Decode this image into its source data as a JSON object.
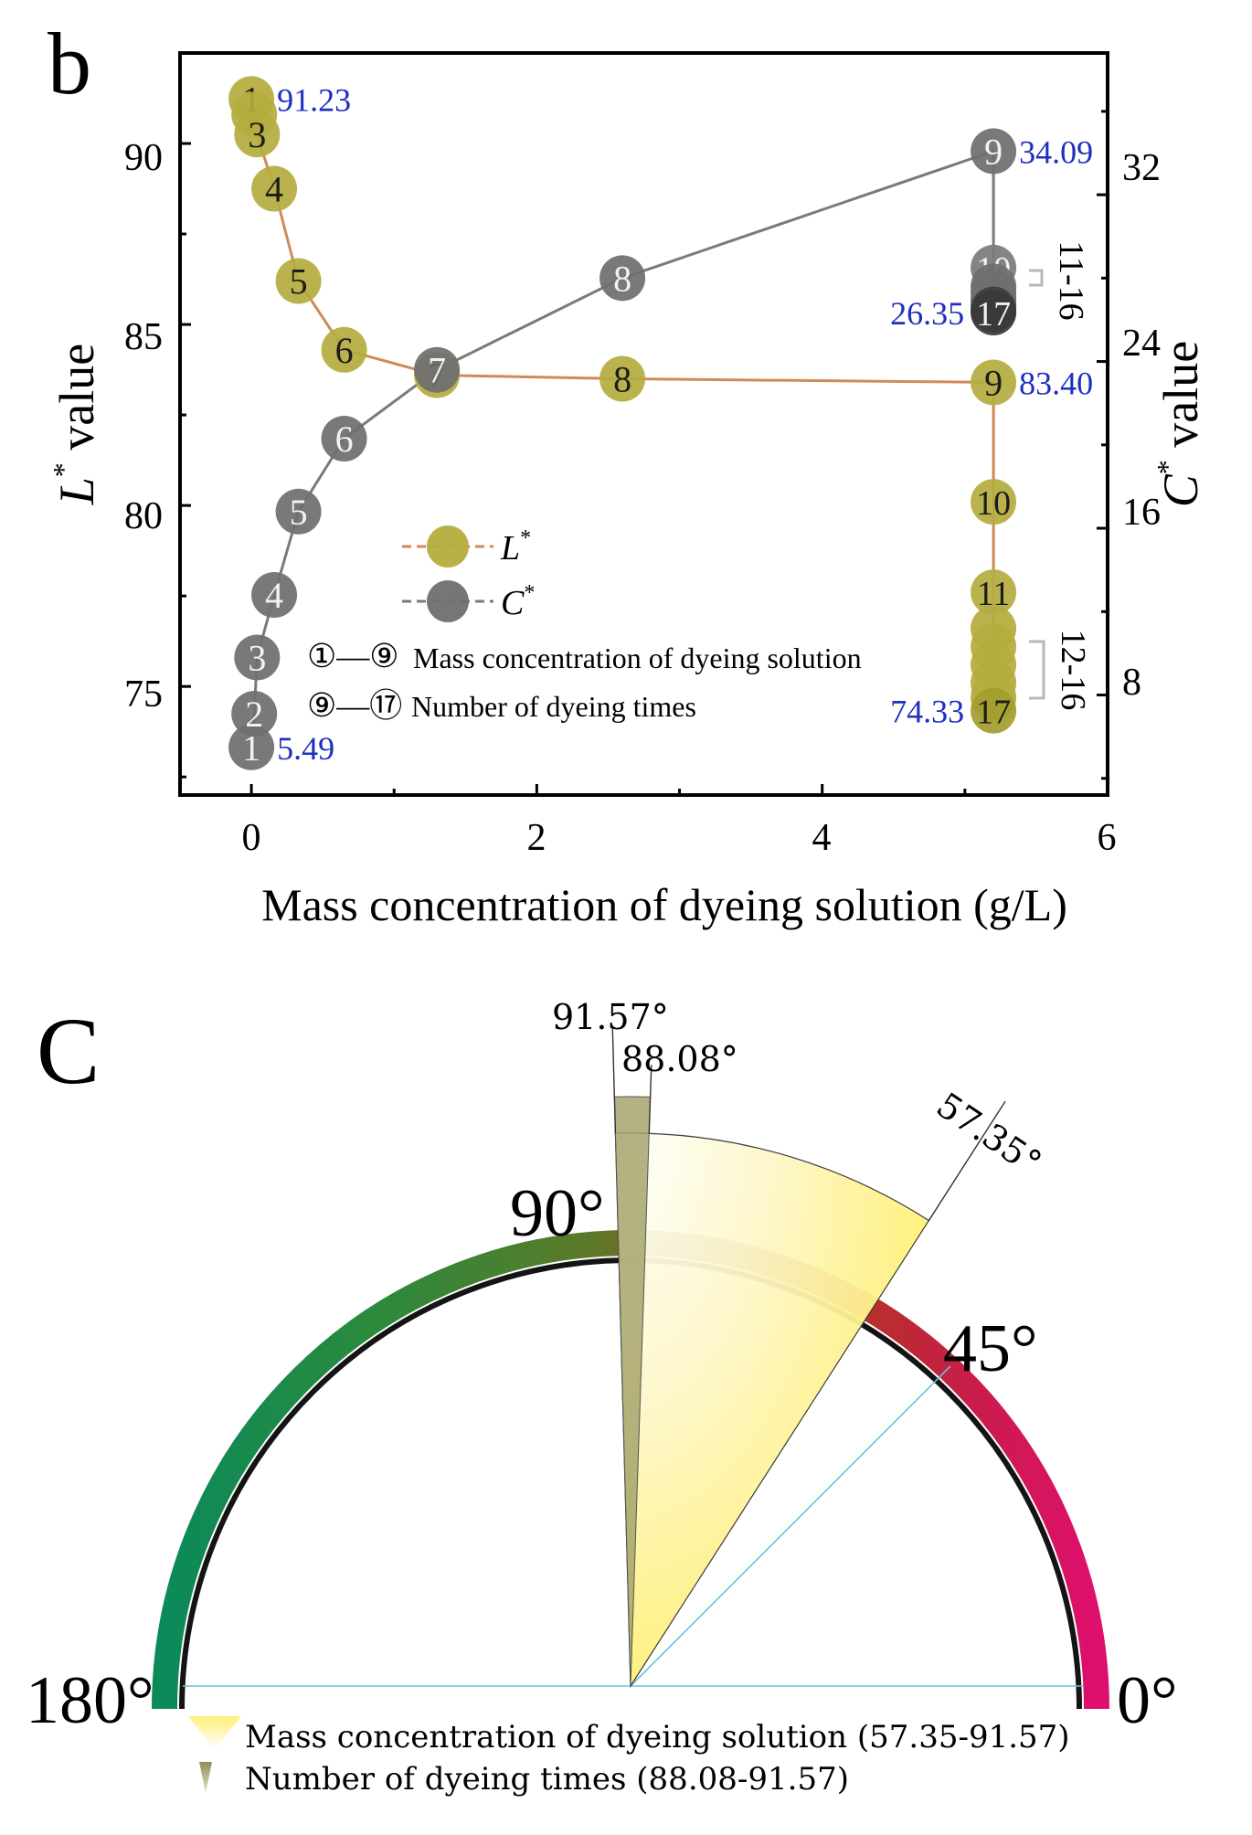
{
  "chart_data": [
    {
      "type": "line",
      "panel_label": "b",
      "xlabel": "Mass concentration of dyeing solution (g/L)",
      "ylabel_left": {
        "symbol": "L",
        "sup": "*",
        "text": " value"
      },
      "ylabel_right": {
        "symbol": "C",
        "sup": "*",
        "text": " value"
      },
      "xlim": [
        -0.5,
        6
      ],
      "ylim_left": [
        72,
        92.5
      ],
      "ylim_right": [
        3.2,
        38.8
      ],
      "x_ticks": [
        "0",
        "2",
        "4",
        "6"
      ],
      "x_tick_values": [
        0,
        2,
        4,
        6
      ],
      "y_left_ticks": [
        "75",
        "80",
        "85",
        "90"
      ],
      "y_left_tick_values": [
        75,
        80,
        85,
        90
      ],
      "y_right_ticks": [
        "8",
        "16",
        "24",
        "32"
      ],
      "y_right_tick_values": [
        8,
        16,
        24,
        32
      ],
      "series": [
        {
          "name": "L*",
          "axis": "left",
          "line_color": "#d08a58",
          "marker_color": "#b4ad3e",
          "points": [
            {
              "label": "1",
              "x": 0.0,
              "y": 91.23
            },
            {
              "label": "2",
              "x": 0.02,
              "y": 90.8
            },
            {
              "label": "3",
              "x": 0.04,
              "y": 90.25
            },
            {
              "label": "4",
              "x": 0.16,
              "y": 88.75
            },
            {
              "label": "5",
              "x": 0.33,
              "y": 86.2
            },
            {
              "label": "6",
              "x": 0.65,
              "y": 84.3
            },
            {
              "label": "7",
              "x": 1.3,
              "y": 83.6
            },
            {
              "label": "8",
              "x": 2.6,
              "y": 83.5
            },
            {
              "label": "9",
              "x": 5.2,
              "y": 83.4
            },
            {
              "label": "10",
              "x": 5.2,
              "y": 80.1
            },
            {
              "label": "11",
              "x": 5.2,
              "y": 77.6
            },
            {
              "label": "12",
              "x": 5.2,
              "y": 76.6
            },
            {
              "label": "13",
              "x": 5.2,
              "y": 76.1
            },
            {
              "label": "14",
              "x": 5.2,
              "y": 75.6
            },
            {
              "label": "15",
              "x": 5.2,
              "y": 75.1
            },
            {
              "label": "16",
              "x": 5.2,
              "y": 74.7
            },
            {
              "label": "17",
              "x": 5.2,
              "y": 74.33
            }
          ]
        },
        {
          "name": "C*",
          "axis": "right",
          "line_color": "#7a7a7a",
          "marker_color": "#6f6f6f",
          "points": [
            {
              "label": "1",
              "x": 0.0,
              "y": 5.49
            },
            {
              "label": "2",
              "x": 0.02,
              "y": 7.1
            },
            {
              "label": "3",
              "x": 0.04,
              "y": 9.8
            },
            {
              "label": "4",
              "x": 0.16,
              "y": 12.8
            },
            {
              "label": "5",
              "x": 0.33,
              "y": 16.8
            },
            {
              "label": "6",
              "x": 0.65,
              "y": 20.3
            },
            {
              "label": "7",
              "x": 1.3,
              "y": 23.6
            },
            {
              "label": "8",
              "x": 2.6,
              "y": 28.0
            },
            {
              "label": "9",
              "x": 5.2,
              "y": 34.09
            },
            {
              "label": "10",
              "x": 5.2,
              "y": 28.5
            },
            {
              "label": "11",
              "x": 5.2,
              "y": 27.6
            },
            {
              "label": "12",
              "x": 5.2,
              "y": 27.3
            },
            {
              "label": "13",
              "x": 5.2,
              "y": 27.0
            },
            {
              "label": "14",
              "x": 5.2,
              "y": 26.8
            },
            {
              "label": "15",
              "x": 5.2,
              "y": 26.6
            },
            {
              "label": "16",
              "x": 5.2,
              "y": 26.5
            },
            {
              "label": "17",
              "x": 5.2,
              "y": 26.35
            }
          ]
        }
      ],
      "value_annotations": [
        {
          "text": "91.23",
          "series": "L*",
          "point": 0,
          "side": "right"
        },
        {
          "text": "83.40",
          "series": "L*",
          "point": 8,
          "side": "right"
        },
        {
          "text": "74.33",
          "series": "L*",
          "point": 16,
          "side": "left"
        },
        {
          "text": "5.49",
          "series": "C*",
          "point": 0,
          "side": "right"
        },
        {
          "text": "34.09",
          "series": "C*",
          "point": 8,
          "side": "right"
        },
        {
          "text": "26.35",
          "series": "C*",
          "point": 16,
          "side": "left"
        }
      ],
      "annotation_color": "#1f2fbf",
      "bracket_labels": [
        "11-16",
        "12-16"
      ],
      "legend": [
        {
          "symbol": "L",
          "sup": "*"
        },
        {
          "symbol": "C",
          "sup": "*"
        }
      ],
      "notes": [
        {
          "from": "①",
          "to": "⑨",
          "text": "Mass concentration of dyeing solution"
        },
        {
          "from": "⑨",
          "to": "⑰",
          "text": "Number of dyeing times"
        }
      ]
    },
    {
      "type": "polar-sector",
      "panel_label": "C",
      "scale_ticks": [
        "180°",
        "90°",
        "45°",
        "0°"
      ],
      "sectors": [
        {
          "name": "Mass concentration of dyeing solution",
          "from_deg": 57.35,
          "to_deg": 91.57,
          "range_text": "(57.35-91.57)",
          "color": "#fff27a"
        },
        {
          "name": "Number of dyeing times",
          "from_deg": 88.08,
          "to_deg": 91.57,
          "range_text": "(88.08-91.57)",
          "color": "#a7a46c"
        }
      ],
      "angle_labels": [
        "91.57°",
        "88.08°",
        "57.35°"
      ],
      "legend": [
        "Mass concentration of dyeing solution (57.35-91.57)",
        "Number of dyeing times (88.08-91.57)"
      ]
    }
  ]
}
